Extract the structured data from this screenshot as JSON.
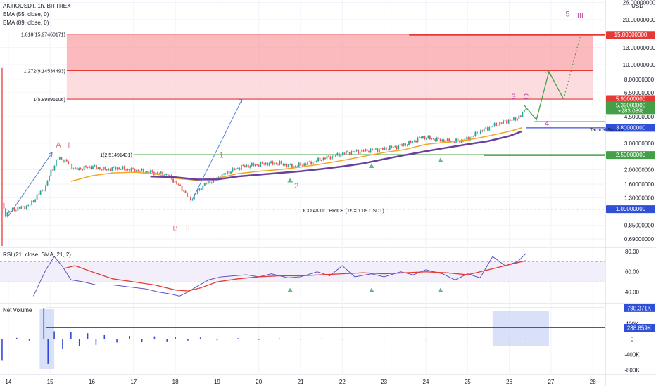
{
  "header": {
    "symbol_line": "AKTIOUSDT, 1h, BITTREX",
    "ema55": "EMA (55, close, 0)",
    "ema89": "EMA (89, close, 0)"
  },
  "colors": {
    "up": "#26a69a",
    "down": "#ef5350",
    "ema55": "#f5a623",
    "ema89": "#6a3fa0",
    "red_line": "#e53935",
    "blue_line": "#3f51d6",
    "green_line": "#43a047",
    "wave_red": "#e57373",
    "wave_purple": "#c04fa0",
    "rsi": "#5c53c4",
    "rsi_sma": "#e53935",
    "volume": "#3549d8",
    "tag_blue": "#2f4fd6",
    "tag_red": "#e53935",
    "tag_green": "#43a047"
  },
  "price_axis": {
    "unit": "USDT",
    "labels": [
      "26.00000000",
      "20.00000000",
      "13.00000000",
      "10.00000000",
      "8.00000000",
      "6.50000000",
      "4.50000000",
      "3.00000000",
      "2.00000000",
      "1.60000000",
      "1.30000000",
      "0.85000000",
      "0.69000000"
    ],
    "tags": [
      {
        "text": "15.80000000",
        "value": 15.8,
        "color": "tag_red"
      },
      {
        "text": "5.90000000",
        "value": 5.9,
        "color": "tag_red"
      },
      {
        "text": "5.39000000",
        "text2": "+283.08%",
        "value": 5.39,
        "color": "tag_green"
      },
      {
        "text": "3.80000000",
        "value": 3.8,
        "color": "tag_blue"
      },
      {
        "text": "2.50000000",
        "value": 2.5,
        "color": "tag_green"
      },
      {
        "text": "1.09000000",
        "value": 1.09,
        "color": "tag_blue"
      }
    ]
  },
  "time_axis": {
    "labels": [
      "14",
      "15",
      "16",
      "17",
      "18",
      "19",
      "20",
      "21",
      "22",
      "23",
      "24",
      "25",
      "26",
      "27",
      "28"
    ]
  },
  "fib_levels": [
    {
      "label": "1.618(15.97460171)",
      "value": 15.97
    },
    {
      "label": "1.272(9.14534493)",
      "value": 9.145
    },
    {
      "label": "1(5.89896106)",
      "value": 5.899
    },
    {
      "label": "1(2.51491431)",
      "value": 2.515
    }
  ],
  "annotations": {
    "ico_line": "ICO AKTIO PRICE (1€ = 1.09 USDT)",
    "tactical_support": "Tactical Support"
  },
  "waves": [
    {
      "text": "A",
      "color": "wave_red"
    },
    {
      "text": "I",
      "color": "wave_red"
    },
    {
      "text": "B",
      "color": "wave_red"
    },
    {
      "text": "II",
      "color": "wave_red"
    },
    {
      "text": "1",
      "color": "wave_red"
    },
    {
      "text": "2",
      "color": "wave_red"
    },
    {
      "text": "3",
      "color": "wave_purple"
    },
    {
      "text": "C",
      "color": "wave_purple"
    },
    {
      "text": "4",
      "color": "wave_purple"
    },
    {
      "text": "5",
      "color": "wave_purple"
    },
    {
      "text": "III",
      "color": "wave_purple"
    }
  ],
  "rsi_panel": {
    "title": "RSI (21, close, SMA, 21, 2)",
    "axis_labels": [
      "80.00",
      "60.00",
      "40.00"
    ]
  },
  "volume_panel": {
    "title": "Net Volume",
    "axis_labels": [
      "400K",
      "0",
      "-400K",
      "-800K"
    ],
    "tags": [
      {
        "text": "798.371K",
        "value": 798371
      },
      {
        "text": "288.859K",
        "value": 288859
      }
    ]
  },
  "chart_data": [
    {
      "type": "line",
      "title": "AKTIOUSDT, 1h, BITTREX",
      "ylabel": "USDT",
      "y_scale": "log",
      "ylim": [
        0.62,
        27
      ],
      "xlim": [
        13.8,
        28.3
      ],
      "x_ticks": [
        14,
        15,
        16,
        17,
        18,
        19,
        20,
        21,
        22,
        23,
        24,
        25,
        26,
        27,
        28
      ],
      "series": [
        {
          "name": "AKTIOUSDT",
          "x": [
            13.85,
            13.92,
            14.0,
            14.2,
            14.5,
            14.7,
            14.9,
            15.0,
            15.2,
            15.4,
            15.6,
            15.8,
            16.0,
            16.3,
            16.6,
            16.9,
            17.2,
            17.5,
            17.8,
            18.0,
            18.2,
            18.35,
            18.5,
            18.7,
            19.0,
            19.3,
            19.6,
            19.9,
            20.2,
            20.5,
            20.8,
            21.0,
            21.3,
            21.6,
            21.9,
            22.1,
            22.4,
            22.7,
            23.0,
            23.3,
            23.6,
            23.9,
            24.2,
            24.5,
            24.8,
            25.0,
            25.3,
            25.6,
            25.9,
            26.1,
            26.3,
            26.4
          ],
          "values": [
            1.2,
            1.0,
            1.05,
            1.1,
            1.15,
            1.35,
            1.55,
            1.9,
            2.4,
            2.25,
            2.0,
            2.05,
            2.1,
            2.0,
            2.05,
            2.0,
            1.95,
            1.9,
            1.85,
            1.65,
            1.45,
            1.25,
            1.4,
            1.6,
            1.75,
            1.95,
            2.1,
            2.15,
            2.2,
            2.2,
            2.1,
            2.15,
            2.25,
            2.4,
            2.5,
            2.6,
            2.65,
            2.7,
            2.75,
            2.85,
            3.0,
            3.3,
            3.2,
            3.1,
            3.1,
            3.2,
            3.6,
            3.9,
            4.2,
            4.3,
            4.6,
            5.3
          ]
        },
        {
          "name": "EMA (55, close, 0)",
          "x": [
            15.5,
            16.0,
            16.5,
            17.0,
            17.5,
            18.0,
            18.5,
            19.0,
            19.5,
            20.0,
            20.5,
            21.0,
            21.5,
            22.0,
            22.5,
            23.0,
            23.5,
            24.0,
            24.5,
            25.0,
            25.5,
            26.0,
            26.3
          ],
          "values": [
            1.67,
            1.82,
            1.9,
            1.92,
            1.88,
            1.75,
            1.7,
            1.75,
            1.88,
            1.95,
            2.0,
            2.08,
            2.18,
            2.3,
            2.45,
            2.6,
            2.72,
            2.95,
            3.05,
            3.15,
            3.35,
            3.6,
            3.8
          ]
        },
        {
          "name": "EMA (89, close, 0)",
          "x": [
            17.4,
            18.0,
            18.5,
            19.0,
            19.5,
            20.0,
            20.5,
            21.0,
            21.5,
            22.0,
            22.5,
            23.0,
            23.5,
            24.0,
            24.5,
            25.0,
            25.5,
            26.0,
            26.3
          ],
          "values": [
            1.8,
            1.78,
            1.72,
            1.72,
            1.8,
            1.85,
            1.9,
            1.95,
            2.02,
            2.1,
            2.2,
            2.35,
            2.5,
            2.65,
            2.8,
            2.95,
            3.1,
            3.35,
            3.6
          ]
        }
      ]
    },
    {
      "type": "line",
      "title": "RSI (21, close, SMA, 21, 2)",
      "ylim": [
        30,
        82
      ],
      "xlim": [
        13.8,
        28.3
      ],
      "series": [
        {
          "name": "RSI",
          "x": [
            14.6,
            14.9,
            15.1,
            15.3,
            15.5,
            15.8,
            16.1,
            16.5,
            16.9,
            17.3,
            17.6,
            17.9,
            18.1,
            18.3,
            18.5,
            18.8,
            19.1,
            19.4,
            19.7,
            20.0,
            20.3,
            20.7,
            21.0,
            21.4,
            21.7,
            22.0,
            22.3,
            22.7,
            23.0,
            23.4,
            23.7,
            24.0,
            24.4,
            24.7,
            25.0,
            25.3,
            25.6,
            25.9,
            26.2,
            26.4
          ],
          "values": [
            36,
            62,
            75,
            65,
            52,
            50,
            47,
            47,
            45,
            43,
            40,
            38,
            36,
            40,
            45,
            52,
            55,
            56,
            57,
            55,
            58,
            54,
            55,
            60,
            56,
            66,
            55,
            58,
            55,
            60,
            57,
            62,
            58,
            52,
            58,
            54,
            75,
            66,
            70,
            78
          ]
        },
        {
          "name": "SMA",
          "x": [
            15.3,
            15.6,
            16.0,
            16.5,
            17.0,
            17.5,
            18.0,
            18.3,
            18.6,
            19.0,
            19.5,
            20.0,
            20.5,
            21.0,
            21.5,
            22.0,
            22.5,
            23.0,
            23.5,
            24.0,
            24.5,
            25.0,
            25.5,
            26.0,
            26.4
          ],
          "values": [
            63,
            66,
            60,
            53,
            50,
            47,
            42,
            41,
            44,
            50,
            53,
            55,
            56,
            56,
            57,
            58,
            59,
            58,
            59,
            60,
            59,
            57,
            62,
            67,
            71
          ]
        }
      ]
    },
    {
      "type": "bar",
      "title": "Net Volume",
      "ylim": [
        -860000,
        860000
      ],
      "xlim": [
        13.8,
        28.3
      ],
      "x": [
        13.85,
        14.2,
        14.5,
        14.85,
        14.95,
        15.1,
        15.3,
        15.5,
        15.7,
        15.9,
        16.1,
        16.3,
        16.6,
        16.9,
        17.2,
        17.5,
        17.8,
        18.0,
        18.3,
        18.6,
        19.0,
        19.5,
        20.0,
        20.5,
        21.0,
        21.5,
        22.0,
        22.5,
        23.0,
        23.5,
        24.0,
        24.5,
        25.0,
        25.5,
        26.0,
        26.4
      ],
      "values": [
        -560000,
        30000,
        -40000,
        798371,
        -640000,
        200000,
        -250000,
        180000,
        -180000,
        150000,
        -150000,
        100000,
        -90000,
        80000,
        -80000,
        70000,
        -60000,
        50000,
        -40000,
        40000,
        -30000,
        20000,
        -20000,
        15000,
        -15000,
        12000,
        -12000,
        10000,
        -10000,
        8000,
        -8000,
        8000,
        -6000,
        7000,
        -5000,
        15000
      ]
    }
  ]
}
